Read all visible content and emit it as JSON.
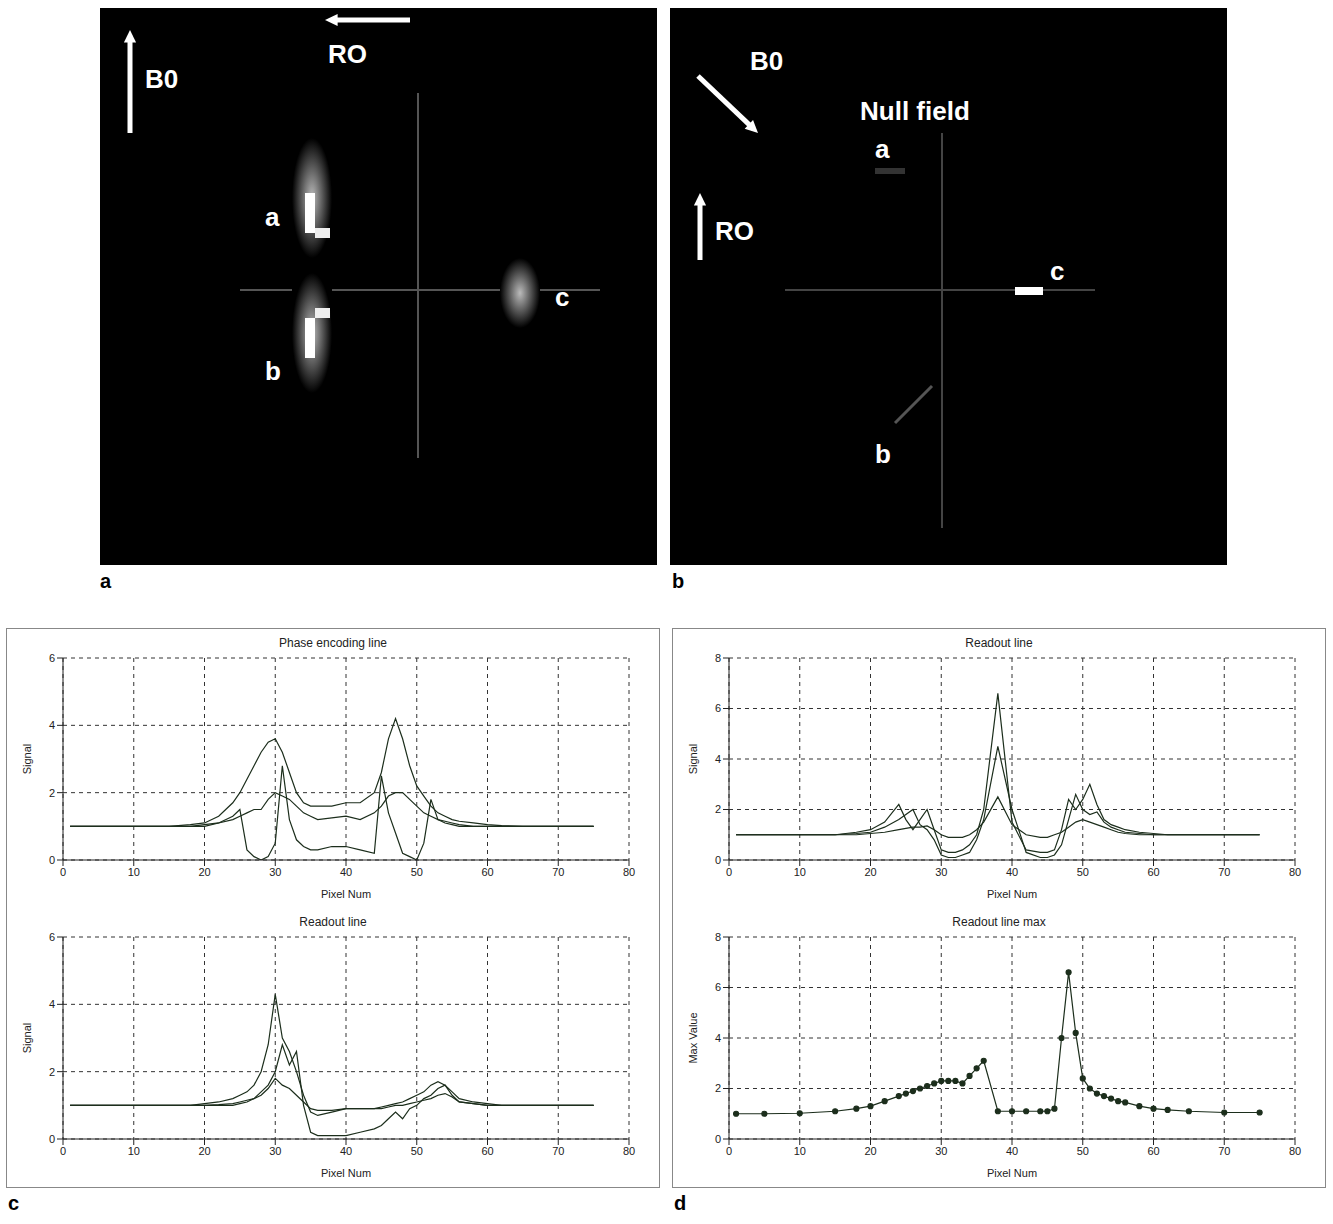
{
  "panel_labels": [
    "a",
    "b",
    "c",
    "d"
  ],
  "images": [
    {
      "field_arrow": "B0",
      "readout_arrow": "RO",
      "markers": [
        "a",
        "b",
        "c"
      ]
    },
    {
      "field_arrow": "B0",
      "readout_arrow": "RO",
      "note": "Null field",
      "markers": [
        "a",
        "b",
        "c"
      ]
    }
  ],
  "chart_data": [
    {
      "type": "line",
      "title": "Phase encoding line",
      "x_label": "Pixel Num",
      "y_label": "Signal",
      "x": [
        1,
        5,
        10,
        15,
        18,
        20,
        22,
        24,
        25,
        26,
        27,
        28,
        29,
        30,
        31,
        32,
        33,
        34,
        35,
        36,
        38,
        40,
        42,
        44,
        45,
        46,
        47,
        48,
        49,
        50,
        51,
        52,
        53,
        54,
        55,
        56,
        58,
        60,
        62,
        65,
        70,
        75
      ],
      "series": [
        {
          "color": "#1c2e1c",
          "values": [
            1,
            1,
            1,
            1,
            1.05,
            1.1,
            1.3,
            1.7,
            2.0,
            2.4,
            2.8,
            3.2,
            3.5,
            3.6,
            3.2,
            2.6,
            2.0,
            1.7,
            1.6,
            1.6,
            1.6,
            1.7,
            1.7,
            2.0,
            2.6,
            3.6,
            4.2,
            3.6,
            2.8,
            2.2,
            1.9,
            1.6,
            1.4,
            1.3,
            1.2,
            1.15,
            1.1,
            1.05,
            1.02,
            1,
            1,
            1
          ]
        },
        {
          "color": "#1c2e1c",
          "values": [
            1,
            1,
            1,
            1,
            1,
            1,
            1.1,
            1.3,
            1.5,
            0.3,
            0.1,
            0,
            0.1,
            0.5,
            2.8,
            1.2,
            0.6,
            0.4,
            0.3,
            0.3,
            0.4,
            0.4,
            0.3,
            0.2,
            2.5,
            1.4,
            0.8,
            0.2,
            0.1,
            0,
            0.5,
            1.8,
            1.2,
            1.1,
            1.05,
            1,
            1,
            1,
            1,
            1,
            1,
            1
          ]
        },
        {
          "color": "#1c2e1c",
          "values": [
            1,
            1,
            1,
            1,
            1,
            1.05,
            1.1,
            1.2,
            1.3,
            1.4,
            1.5,
            1.5,
            1.8,
            2.0,
            1.9,
            1.8,
            1.6,
            1.4,
            1.3,
            1.2,
            1.25,
            1.3,
            1.2,
            1.4,
            1.6,
            1.9,
            2.0,
            2.0,
            1.8,
            1.6,
            1.4,
            1.3,
            1.2,
            1.15,
            1.1,
            1.05,
            1,
            1,
            1,
            1,
            1,
            1
          ]
        }
      ],
      "xlim": [
        0,
        80
      ],
      "xticks": [
        0,
        10,
        20,
        30,
        40,
        50,
        60,
        70,
        80
      ],
      "ylim": [
        0,
        6
      ],
      "yticks": [
        0,
        2,
        4,
        6
      ],
      "grid": true
    },
    {
      "type": "line",
      "title": "Readout line",
      "x_label": "Pixel Num",
      "y_label": "Signal",
      "x": [
        1,
        5,
        10,
        15,
        18,
        20,
        22,
        24,
        25,
        26,
        27,
        28,
        29,
        30,
        31,
        32,
        33,
        34,
        35,
        36,
        38,
        40,
        42,
        44,
        45,
        46,
        47,
        48,
        49,
        50,
        51,
        52,
        53,
        54,
        55,
        56,
        58,
        60,
        62,
        65,
        70,
        75
      ],
      "series": [
        {
          "color": "#1c2e1c",
          "values": [
            1,
            1,
            1,
            1,
            1,
            1.05,
            1.1,
            1.2,
            1.3,
            1.4,
            1.6,
            2.0,
            2.8,
            4.3,
            3.0,
            2.6,
            2.0,
            1.3,
            0.8,
            0.7,
            0.8,
            0.9,
            0.9,
            0.9,
            0.95,
            1.0,
            1.05,
            1.1,
            1.2,
            1.3,
            1.4,
            1.6,
            1.7,
            1.6,
            1.4,
            1.2,
            1.1,
            1.05,
            1,
            1,
            1,
            1
          ]
        },
        {
          "color": "#1c2e1c",
          "values": [
            1,
            1,
            1,
            1,
            1,
            1,
            1,
            1,
            1.05,
            1.1,
            1.2,
            1.4,
            1.6,
            2.0,
            2.8,
            2.2,
            2.6,
            1.0,
            0.2,
            0.1,
            0.1,
            0.1,
            0.2,
            0.3,
            0.4,
            0.6,
            0.8,
            0.6,
            0.9,
            1.0,
            1.2,
            1.3,
            1.5,
            1.6,
            1.3,
            1.1,
            1.05,
            1,
            1,
            1,
            1,
            1
          ]
        },
        {
          "color": "#1c2e1c",
          "values": [
            1,
            1,
            1,
            1,
            1,
            1,
            1.02,
            1.05,
            1.1,
            1.15,
            1.2,
            1.3,
            1.5,
            1.8,
            1.6,
            1.5,
            1.3,
            1.1,
            0.9,
            0.85,
            0.85,
            0.9,
            0.9,
            0.9,
            0.9,
            0.95,
            1.0,
            1.0,
            1.05,
            1.1,
            1.15,
            1.2,
            1.3,
            1.35,
            1.25,
            1.1,
            1.05,
            1,
            1,
            1,
            1,
            1
          ]
        }
      ],
      "xlim": [
        0,
        80
      ],
      "xticks": [
        0,
        10,
        20,
        30,
        40,
        50,
        60,
        70,
        80
      ],
      "ylim": [
        0,
        6
      ],
      "yticks": [
        0,
        2,
        4,
        6
      ],
      "grid": true
    },
    {
      "type": "line",
      "title": "Readout line",
      "x_label": "Pixel Num",
      "y_label": "Signal",
      "x": [
        1,
        5,
        10,
        15,
        18,
        20,
        22,
        24,
        25,
        26,
        27,
        28,
        29,
        30,
        31,
        32,
        33,
        34,
        35,
        36,
        38,
        40,
        42,
        44,
        45,
        46,
        47,
        48,
        49,
        50,
        51,
        52,
        53,
        54,
        55,
        56,
        58,
        60,
        62,
        65,
        70,
        75
      ],
      "series": [
        {
          "color": "#1c2e1c",
          "values": [
            1,
            1,
            1,
            1,
            1.1,
            1.2,
            1.5,
            2.2,
            1.6,
            1.2,
            1.6,
            2.0,
            1.2,
            0.4,
            0.3,
            0.3,
            0.4,
            0.6,
            1.0,
            2.0,
            6.6,
            1.5,
            0.4,
            0.3,
            0.3,
            0.4,
            1.2,
            2.4,
            2.0,
            2.4,
            3.0,
            2.2,
            1.6,
            1.4,
            1.3,
            1.2,
            1.1,
            1.05,
            1,
            1,
            1,
            1
          ]
        },
        {
          "color": "#1c2e1c",
          "values": [
            1,
            1,
            1,
            1,
            1.05,
            1.1,
            1.3,
            1.6,
            1.8,
            2.0,
            1.4,
            1.2,
            0.8,
            0.2,
            0.1,
            0.1,
            0.2,
            0.3,
            0.8,
            1.6,
            4.5,
            2.0,
            0.3,
            0.1,
            0.1,
            0.2,
            0.6,
            1.6,
            2.6,
            2.0,
            1.8,
            1.9,
            1.5,
            1.3,
            1.2,
            1.1,
            1.05,
            1,
            1,
            1,
            1,
            1
          ]
        },
        {
          "color": "#1c2e1c",
          "values": [
            1,
            1,
            1,
            1,
            1,
            1.05,
            1.1,
            1.2,
            1.25,
            1.3,
            1.3,
            1.35,
            1.2,
            1.0,
            0.9,
            0.9,
            0.9,
            1.0,
            1.2,
            1.5,
            2.5,
            1.4,
            1.0,
            0.9,
            0.9,
            1.0,
            1.1,
            1.3,
            1.5,
            1.6,
            1.5,
            1.4,
            1.3,
            1.2,
            1.1,
            1.05,
            1,
            1,
            1,
            1,
            1,
            1
          ]
        }
      ],
      "xlim": [
        0,
        80
      ],
      "xticks": [
        0,
        10,
        20,
        30,
        40,
        50,
        60,
        70,
        80
      ],
      "ylim": [
        0,
        8
      ],
      "yticks": [
        0,
        2,
        4,
        6,
        8
      ],
      "grid": true
    },
    {
      "type": "line",
      "title": "Readout line max",
      "x_label": "Pixel Num",
      "y_label": "Max Value",
      "x": [
        1,
        5,
        10,
        15,
        18,
        20,
        22,
        24,
        25,
        26,
        27,
        28,
        29,
        30,
        31,
        32,
        33,
        34,
        35,
        36,
        38,
        40,
        42,
        44,
        45,
        46,
        47,
        48,
        49,
        50,
        51,
        52,
        53,
        54,
        55,
        56,
        58,
        60,
        62,
        65,
        70,
        75
      ],
      "series": [
        {
          "color": "#1c2e1c",
          "marker": "circle",
          "values": [
            1,
            1,
            1.02,
            1.1,
            1.2,
            1.3,
            1.5,
            1.7,
            1.8,
            1.9,
            2.0,
            2.1,
            2.2,
            2.3,
            2.3,
            2.3,
            2.2,
            2.5,
            2.8,
            3.1,
            1.1,
            1.1,
            1.1,
            1.1,
            1.1,
            1.2,
            4.0,
            6.6,
            4.2,
            2.4,
            2.0,
            1.8,
            1.7,
            1.6,
            1.5,
            1.45,
            1.3,
            1.2,
            1.15,
            1.1,
            1.05,
            1.05
          ]
        }
      ],
      "xlim": [
        0,
        80
      ],
      "xticks": [
        0,
        10,
        20,
        30,
        40,
        50,
        60,
        70,
        80
      ],
      "ylim": [
        0,
        8
      ],
      "yticks": [
        0,
        2,
        4,
        6,
        8
      ],
      "grid": true
    }
  ]
}
